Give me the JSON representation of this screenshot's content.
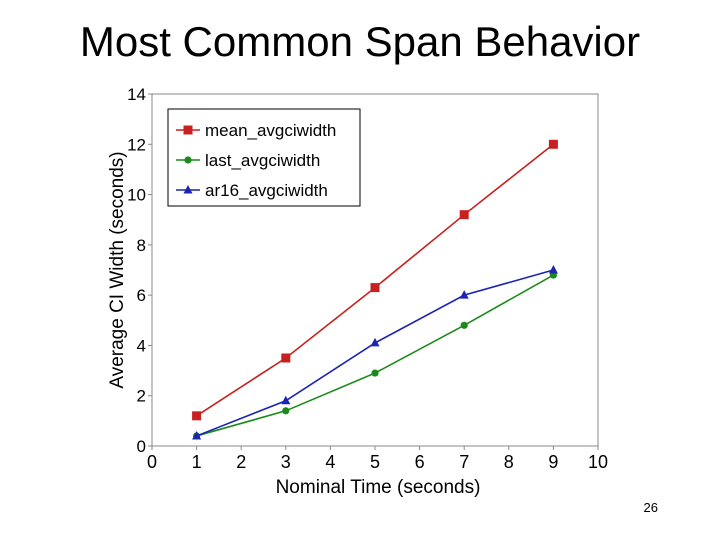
{
  "slide": {
    "title": "Most Common Span Behavior",
    "page_number": "26"
  },
  "chart_data": {
    "type": "line",
    "xlabel": "Nominal Time (seconds)",
    "ylabel": "Average CI Width (seconds)",
    "xlim": [
      0,
      10
    ],
    "ylim": [
      0,
      14
    ],
    "x_ticks": [
      0,
      1,
      2,
      3,
      4,
      5,
      6,
      7,
      8,
      9,
      10
    ],
    "y_ticks": [
      0,
      2,
      4,
      6,
      8,
      10,
      12,
      14
    ],
    "grid": false,
    "legend_position": "top-left",
    "x": [
      1,
      3,
      5,
      7,
      9
    ],
    "series": [
      {
        "name": "mean_avgciwidth",
        "color": "#c8201e",
        "marker": "square",
        "values": [
          1.2,
          3.5,
          6.3,
          9.2,
          12.0
        ]
      },
      {
        "name": "last_avgciwidth",
        "color": "#1a8a1a",
        "marker": "circle",
        "values": [
          0.4,
          1.4,
          2.9,
          4.8,
          6.8
        ]
      },
      {
        "name": "ar16_avgciwidth",
        "color": "#1c24b0",
        "marker": "triangle",
        "values": [
          0.4,
          1.8,
          4.1,
          6.0,
          7.0
        ]
      }
    ]
  }
}
